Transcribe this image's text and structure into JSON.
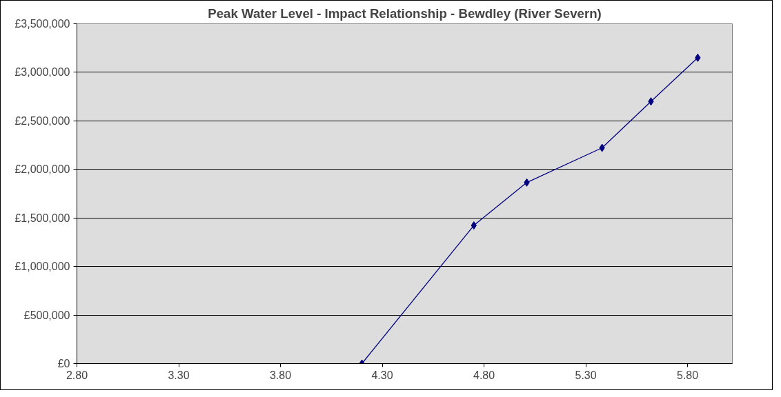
{
  "chart_data": {
    "type": "line",
    "title": "Peak Water Level - Impact Relationship - Bewdley (River Severn)",
    "x": [
      4.2,
      4.75,
      5.01,
      5.38,
      5.62,
      5.85
    ],
    "series": [
      {
        "color": "#000080",
        "values": [
          0,
          1423000,
          1865000,
          2222000,
          2700000,
          3150000
        ]
      }
    ],
    "xlim": [
      2.8,
      6.02
    ],
    "xticks": [
      {
        "value": 2.8,
        "label": "2.80"
      },
      {
        "value": 3.3,
        "label": "3.30"
      },
      {
        "value": 3.8,
        "label": "3.80"
      },
      {
        "value": 4.3,
        "label": "4.30"
      },
      {
        "value": 4.8,
        "label": "4.80"
      },
      {
        "value": 5.3,
        "label": "5.30"
      },
      {
        "value": 5.8,
        "label": "5.80"
      }
    ],
    "ylim": [
      0,
      3500000
    ],
    "yticks": [
      {
        "value": 0,
        "label": "£0"
      },
      {
        "value": 500000,
        "label": "£500,000"
      },
      {
        "value": 1000000,
        "label": "£1,000,000"
      },
      {
        "value": 1500000,
        "label": "£1,500,000"
      },
      {
        "value": 2000000,
        "label": "£2,000,000"
      },
      {
        "value": 2500000,
        "label": "£2,500,000"
      },
      {
        "value": 3000000,
        "label": "£3,000,000"
      },
      {
        "value": 3500000,
        "label": "£3,500,000"
      }
    ],
    "grid": "y",
    "marker": "diamond",
    "line_style": "solid"
  }
}
